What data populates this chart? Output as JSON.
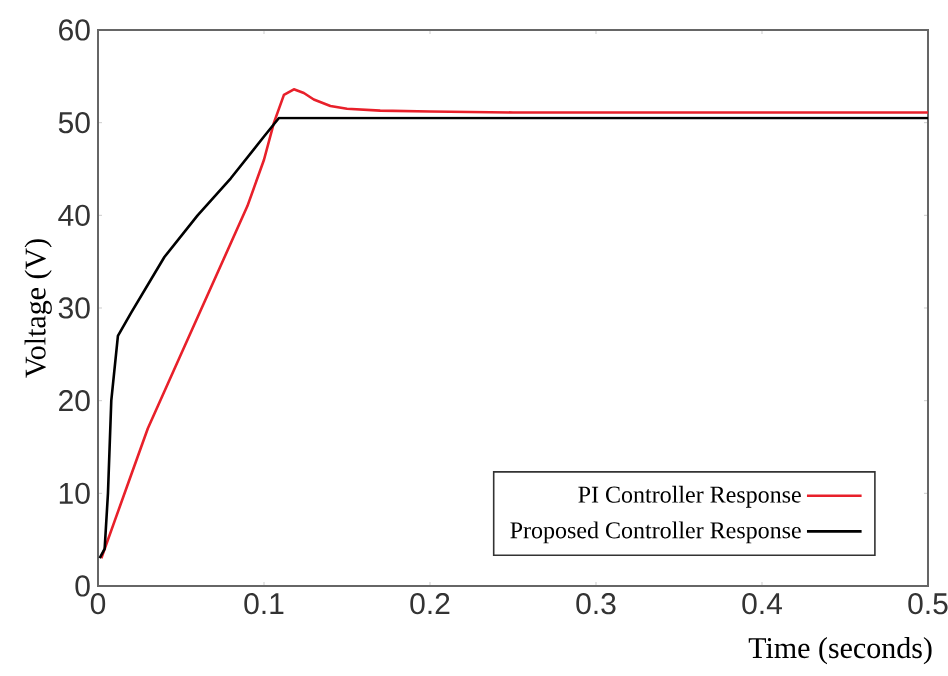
{
  "chart_data": {
    "type": "line",
    "xlabel": "Time (seconds)",
    "ylabel": "Voltage (V)",
    "xlim": [
      0,
      0.5
    ],
    "ylim": [
      0,
      60
    ],
    "xticks": [
      0,
      0.1,
      0.2,
      0.3,
      0.4,
      0.5
    ],
    "yticks": [
      0,
      10,
      20,
      30,
      40,
      50,
      60
    ],
    "legend": "bottom right",
    "series": [
      {
        "name": "PI Controller Response",
        "color": "#e8202a",
        "x": [
          0.002,
          0.01,
          0.02,
          0.03,
          0.05,
          0.07,
          0.09,
          0.1,
          0.106,
          0.112,
          0.118,
          0.124,
          0.13,
          0.14,
          0.15,
          0.17,
          0.2,
          0.25,
          0.35,
          0.5
        ],
        "values": [
          3,
          7,
          12,
          17,
          25,
          33,
          41,
          46,
          50,
          53,
          53.6,
          53.2,
          52.5,
          51.8,
          51.5,
          51.3,
          51.2,
          51.1,
          51.1,
          51.1
        ]
      },
      {
        "name": "Proposed Controller Response",
        "color": "#000000",
        "x": [
          0.001,
          0.004,
          0.006,
          0.008,
          0.012,
          0.02,
          0.03,
          0.04,
          0.06,
          0.08,
          0.1,
          0.109,
          0.2,
          0.35,
          0.5
        ],
        "values": [
          3,
          4,
          10,
          20,
          27,
          29.5,
          32.5,
          35.5,
          40,
          44,
          48.5,
          50.5,
          50.5,
          50.5,
          50.5
        ]
      }
    ]
  }
}
